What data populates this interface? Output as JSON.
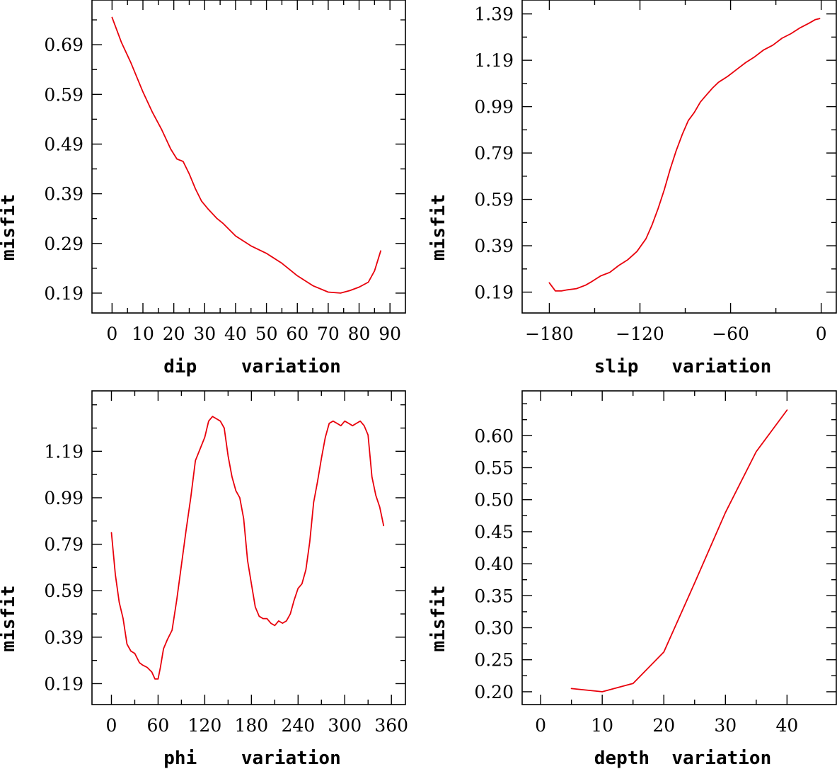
{
  "colors": {
    "series": "#e8000b",
    "axes": "#000000",
    "background": "#ffffff"
  },
  "chart_data": [
    {
      "id": "dip",
      "type": "line",
      "xlabel": "dip    variation",
      "ylabel": "misfit",
      "xlim": [
        -6.5,
        95
      ],
      "ylim": [
        0.15,
        0.78
      ],
      "xticks": [
        0,
        10,
        20,
        30,
        40,
        50,
        60,
        70,
        80,
        90
      ],
      "xtick_labels": [
        "0",
        "10",
        "20",
        "30",
        "40",
        "50",
        "60",
        "70",
        "80",
        "90"
      ],
      "yticks": [
        0.19,
        0.29,
        0.39,
        0.49,
        0.59,
        0.69
      ],
      "ytick_labels": [
        "0.19",
        "0.29",
        "0.39",
        "0.49",
        "0.59",
        "0.69"
      ],
      "grid": false,
      "series": [
        {
          "x": [
            0,
            3,
            6,
            10,
            13,
            16,
            19,
            21,
            23,
            25,
            27,
            29,
            31,
            34,
            36,
            40,
            45,
            50,
            55,
            60,
            65,
            70,
            74,
            77,
            80,
            83,
            85,
            87
          ],
          "y": [
            0.745,
            0.695,
            0.655,
            0.595,
            0.555,
            0.52,
            0.48,
            0.46,
            0.455,
            0.43,
            0.4,
            0.375,
            0.36,
            0.34,
            0.33,
            0.305,
            0.285,
            0.27,
            0.25,
            0.225,
            0.205,
            0.192,
            0.19,
            0.195,
            0.202,
            0.212,
            0.235,
            0.275
          ]
        }
      ]
    },
    {
      "id": "slip",
      "type": "line",
      "xlabel": "slip   variation",
      "ylabel": "misfit",
      "xlim": [
        -198,
        10
      ],
      "ylim": [
        0.1,
        1.45
      ],
      "xticks": [
        -180,
        -120,
        -60,
        0
      ],
      "xtick_labels": [
        "−180",
        "−120",
        "−60",
        "0"
      ],
      "yticks": [
        0.19,
        0.39,
        0.59,
        0.79,
        0.99,
        1.19,
        1.39
      ],
      "ytick_labels": [
        "0.19",
        "0.39",
        "0.59",
        "0.79",
        "0.99",
        "1.19",
        "1.39"
      ],
      "grid": false,
      "series": [
        {
          "x": [
            -180,
            -176,
            -172,
            -168,
            -162,
            -156,
            -152,
            -146,
            -140,
            -134,
            -128,
            -122,
            -116,
            -112,
            -108,
            -104,
            -100,
            -96,
            -92,
            -88,
            -84,
            -80,
            -76,
            -72,
            -68,
            -62,
            -56,
            -50,
            -44,
            -38,
            -32,
            -26,
            -20,
            -14,
            -8,
            -4,
            -1
          ],
          "y": [
            0.23,
            0.195,
            0.195,
            0.2,
            0.205,
            0.22,
            0.235,
            0.26,
            0.275,
            0.305,
            0.33,
            0.365,
            0.42,
            0.48,
            0.55,
            0.63,
            0.72,
            0.8,
            0.87,
            0.93,
            0.965,
            1.01,
            1.04,
            1.07,
            1.095,
            1.12,
            1.15,
            1.18,
            1.205,
            1.235,
            1.255,
            1.285,
            1.305,
            1.33,
            1.35,
            1.365,
            1.37
          ]
        }
      ]
    },
    {
      "id": "phi",
      "type": "line",
      "xlabel": "phi    variation",
      "ylabel": "misfit",
      "xlim": [
        -25,
        378
      ],
      "ylim": [
        0.1,
        1.45
      ],
      "xticks": [
        0,
        60,
        120,
        180,
        240,
        300,
        360
      ],
      "xtick_labels": [
        "0",
        "60",
        "120",
        "180",
        "240",
        "300",
        "360"
      ],
      "yticks": [
        0.19,
        0.39,
        0.59,
        0.79,
        0.99,
        1.19
      ],
      "ytick_labels": [
        "0.19",
        "0.39",
        "0.59",
        "0.79",
        "0.99",
        "1.19"
      ],
      "grid": false,
      "series": [
        {
          "x": [
            0,
            5,
            10,
            15,
            20,
            25,
            30,
            36,
            40,
            46,
            52,
            56,
            60,
            63,
            67,
            72,
            78,
            84,
            90,
            96,
            102,
            108,
            114,
            120,
            125,
            130,
            135,
            140,
            145,
            150,
            155,
            160,
            165,
            170,
            175,
            180,
            185,
            190,
            195,
            200,
            205,
            210,
            215,
            220,
            225,
            230,
            235,
            240,
            245,
            250,
            255,
            260,
            265,
            270,
            275,
            280,
            285,
            290,
            295,
            300,
            305,
            310,
            315,
            320,
            325,
            330,
            335,
            340,
            345,
            350
          ],
          "y": [
            0.84,
            0.66,
            0.54,
            0.47,
            0.36,
            0.33,
            0.32,
            0.28,
            0.27,
            0.26,
            0.24,
            0.21,
            0.21,
            0.26,
            0.34,
            0.38,
            0.42,
            0.55,
            0.7,
            0.85,
            0.99,
            1.15,
            1.2,
            1.25,
            1.32,
            1.34,
            1.33,
            1.32,
            1.29,
            1.17,
            1.08,
            1.02,
            0.99,
            0.9,
            0.72,
            0.62,
            0.52,
            0.48,
            0.47,
            0.47,
            0.45,
            0.44,
            0.46,
            0.45,
            0.46,
            0.49,
            0.55,
            0.6,
            0.62,
            0.68,
            0.8,
            0.97,
            1.06,
            1.16,
            1.25,
            1.31,
            1.32,
            1.31,
            1.3,
            1.32,
            1.31,
            1.3,
            1.31,
            1.32,
            1.3,
            1.26,
            1.08,
            1.0,
            0.95,
            0.87
          ]
        }
      ]
    },
    {
      "id": "depth",
      "type": "line",
      "xlabel": "depth  variation",
      "ylabel": "misfit",
      "xlim": [
        -3,
        48
      ],
      "ylim": [
        0.18,
        0.67
      ],
      "xticks": [
        0,
        10,
        20,
        30,
        40
      ],
      "xtick_labels": [
        "0",
        "10",
        "20",
        "30",
        "40"
      ],
      "yticks": [
        0.2,
        0.25,
        0.3,
        0.35,
        0.4,
        0.45,
        0.5,
        0.55,
        0.6
      ],
      "ytick_labels": [
        "0.20",
        "0.25",
        "0.30",
        "0.35",
        "0.40",
        "0.45",
        "0.50",
        "0.55",
        "0.60"
      ],
      "grid": false,
      "series": [
        {
          "x": [
            5,
            10,
            15,
            20,
            25,
            30,
            35,
            40
          ],
          "y": [
            0.205,
            0.2,
            0.213,
            0.262,
            0.37,
            0.48,
            0.575,
            0.64
          ]
        }
      ]
    }
  ]
}
